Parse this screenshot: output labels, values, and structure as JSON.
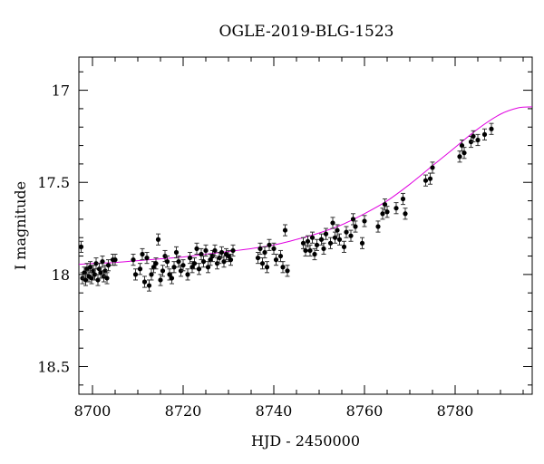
{
  "chart_data": {
    "type": "scatter",
    "title": "OGLE-2019-BLG-1523",
    "xlabel": "HJD - 2450000",
    "ylabel": "I magnitude",
    "xlim": [
      8697,
      8797
    ],
    "ylim": [
      18.65,
      16.82
    ],
    "y_inverted": true,
    "xticks": [
      8700,
      8720,
      8740,
      8760,
      8780
    ],
    "xtick_labels": [
      "8700",
      "8720",
      "8740",
      "8760",
      "8780"
    ],
    "yticks": [
      17,
      17.5,
      18,
      18.5
    ],
    "ytick_labels": [
      "17",
      "17.5",
      "18",
      "18.5"
    ],
    "grid": false,
    "series": [
      {
        "kind": "points-with-errorbars",
        "color": "#000000",
        "x": [
          8697.5,
          8697.8,
          8698.2,
          8698.5,
          8698.8,
          8699.2,
          8699.5,
          8699.8,
          8700.2,
          8700.5,
          8700.8,
          8701.2,
          8701.5,
          8701.8,
          8702.2,
          8702.5,
          8702.8,
          8703.2,
          8703.5,
          8704.5,
          8705.0,
          8709.0,
          8709.5,
          8710.5,
          8711.0,
          8711.5,
          8712.0,
          8712.5,
          8713.0,
          8713.5,
          8714.0,
          8714.5,
          8715.0,
          8715.5,
          8716.0,
          8716.5,
          8717.0,
          8717.5,
          8718.0,
          8718.5,
          8719.0,
          8719.5,
          8720.0,
          8721.0,
          8721.5,
          8722.0,
          8722.5,
          8723.0,
          8723.5,
          8724.0,
          8724.5,
          8725.0,
          8725.5,
          8726.0,
          8726.5,
          8727.0,
          8727.5,
          8728.0,
          8728.5,
          8729.0,
          8729.5,
          8730.0,
          8730.5,
          8731.0,
          8736.5,
          8737.0,
          8737.5,
          8738.0,
          8738.5,
          8739.0,
          8740.0,
          8740.5,
          8741.5,
          8742.0,
          8742.5,
          8743.0,
          8746.5,
          8747.0,
          8747.5,
          8748.0,
          8748.5,
          8749.0,
          8749.5,
          8750.5,
          8751.0,
          8751.5,
          8752.5,
          8753.0,
          8753.5,
          8754.0,
          8754.5,
          8755.5,
          8756.0,
          8757.0,
          8757.5,
          8758.0,
          8759.5,
          8760.0,
          8763.0,
          8764.0,
          8764.5,
          8765.0,
          8767.0,
          8768.5,
          8769.0,
          8773.5,
          8774.5,
          8775.0,
          8781.0,
          8781.5,
          8782.0,
          8783.5,
          8784.0,
          8785.0,
          8786.5,
          8788.0
        ],
        "y": [
          17.85,
          18.02,
          17.99,
          18.03,
          17.97,
          18.01,
          17.96,
          18.02,
          17.98,
          18.0,
          17.94,
          18.03,
          17.97,
          17.99,
          17.93,
          18.01,
          17.98,
          18.02,
          17.95,
          17.92,
          17.92,
          17.92,
          18.0,
          17.97,
          17.89,
          18.04,
          17.91,
          18.06,
          18.0,
          17.96,
          17.94,
          17.81,
          18.03,
          17.98,
          17.9,
          17.93,
          18.0,
          18.02,
          17.96,
          17.88,
          17.93,
          17.98,
          17.95,
          18.0,
          17.91,
          17.96,
          17.94,
          17.86,
          17.97,
          17.89,
          17.93,
          17.87,
          17.96,
          17.92,
          17.9,
          17.87,
          17.94,
          17.91,
          17.88,
          17.93,
          17.89,
          17.9,
          17.92,
          17.87,
          17.91,
          17.86,
          17.94,
          17.88,
          17.96,
          17.84,
          17.86,
          17.92,
          17.9,
          17.96,
          17.76,
          17.98,
          17.83,
          17.87,
          17.82,
          17.87,
          17.8,
          17.89,
          17.84,
          17.81,
          17.86,
          17.78,
          17.83,
          17.72,
          17.8,
          17.76,
          17.81,
          17.85,
          17.77,
          17.79,
          17.7,
          17.74,
          17.83,
          17.71,
          17.74,
          17.67,
          17.62,
          17.66,
          17.64,
          17.59,
          17.67,
          17.49,
          17.48,
          17.42,
          17.36,
          17.3,
          17.34,
          17.28,
          17.25,
          17.27,
          17.24,
          17.21
        ],
        "yerr": 0.03
      },
      {
        "kind": "model-curve",
        "color": "#e000e0",
        "x": [
          8697,
          8700,
          8705,
          8710,
          8715,
          8720,
          8725,
          8730,
          8735,
          8740,
          8745,
          8750,
          8755,
          8760,
          8765,
          8770,
          8775,
          8780,
          8785,
          8790,
          8794,
          8797
        ],
        "y": [
          17.945,
          17.94,
          17.935,
          17.925,
          17.915,
          17.905,
          17.89,
          17.875,
          17.86,
          17.84,
          17.81,
          17.775,
          17.73,
          17.67,
          17.6,
          17.51,
          17.41,
          17.31,
          17.21,
          17.13,
          17.095,
          17.09
        ]
      }
    ]
  }
}
